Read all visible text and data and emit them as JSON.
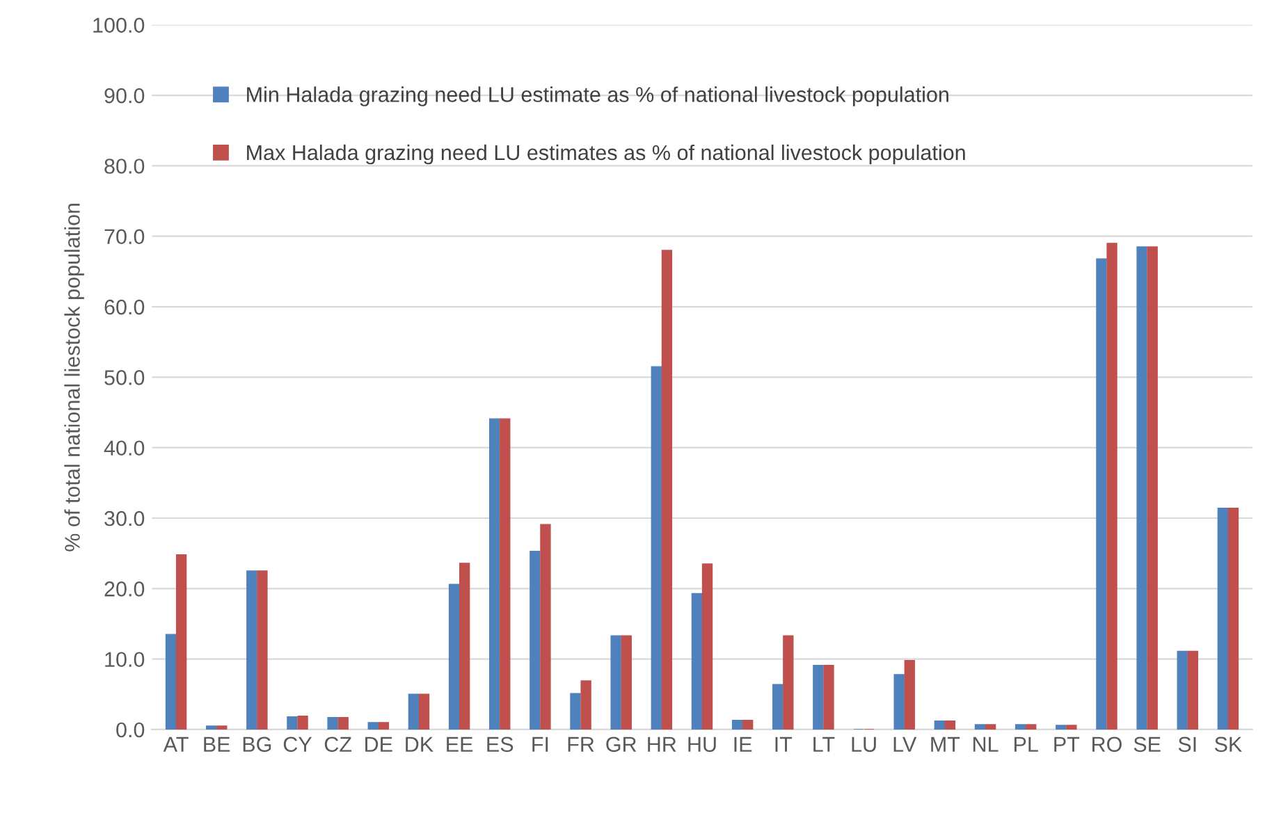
{
  "chart_data": {
    "type": "bar",
    "ylabel": "% of total national liestock population",
    "categories": [
      "AT",
      "BE",
      "BG",
      "CY",
      "CZ",
      "DE",
      "DK",
      "EE",
      "ES",
      "FI",
      "FR",
      "GR",
      "HR",
      "HU",
      "IE",
      "IT",
      "LT",
      "LU",
      "LV",
      "MT",
      "NL",
      "PL",
      "PT",
      "RO",
      "SE",
      "SI",
      "SK"
    ],
    "series": [
      {
        "name": "Min Halada grazing need LU estimate as % of national livestock population",
        "color": "#4f81bd",
        "values": [
          13.5,
          0.5,
          22.5,
          1.8,
          1.7,
          1.0,
          5.0,
          20.6,
          44.1,
          25.3,
          5.1,
          13.3,
          51.5,
          19.3,
          1.3,
          6.4,
          9.1,
          0,
          7.8,
          1.2,
          0.7,
          0.7,
          0.6,
          66.8,
          68.5,
          11.1,
          31.4
        ]
      },
      {
        "name": "Max Halada grazing need LU estimates as % of national livestock population",
        "color": "#c0504d",
        "values": [
          24.8,
          0.5,
          22.5,
          1.9,
          1.7,
          1.0,
          5.0,
          23.6,
          44.1,
          29.1,
          6.9,
          13.3,
          68.0,
          23.5,
          1.3,
          13.3,
          9.1,
          0,
          9.8,
          1.2,
          0.7,
          0.7,
          0.6,
          69.0,
          68.5,
          11.1,
          31.4
        ]
      }
    ],
    "ylim": [
      0,
      100
    ],
    "yticks": [
      {
        "value": 0,
        "label": "0.0"
      },
      {
        "value": 10,
        "label": "10.0"
      },
      {
        "value": 20,
        "label": "20.0"
      },
      {
        "value": 30,
        "label": "30.0"
      },
      {
        "value": 40,
        "label": "40.0"
      },
      {
        "value": 50,
        "label": "50.0"
      },
      {
        "value": 60,
        "label": "60.0"
      },
      {
        "value": 70,
        "label": "70.0"
      },
      {
        "value": 80,
        "label": "80.0"
      },
      {
        "value": 90,
        "label": "90.0"
      },
      {
        "value": 100,
        "label": "100.0"
      }
    ],
    "grid": "y",
    "legend": "top left"
  }
}
